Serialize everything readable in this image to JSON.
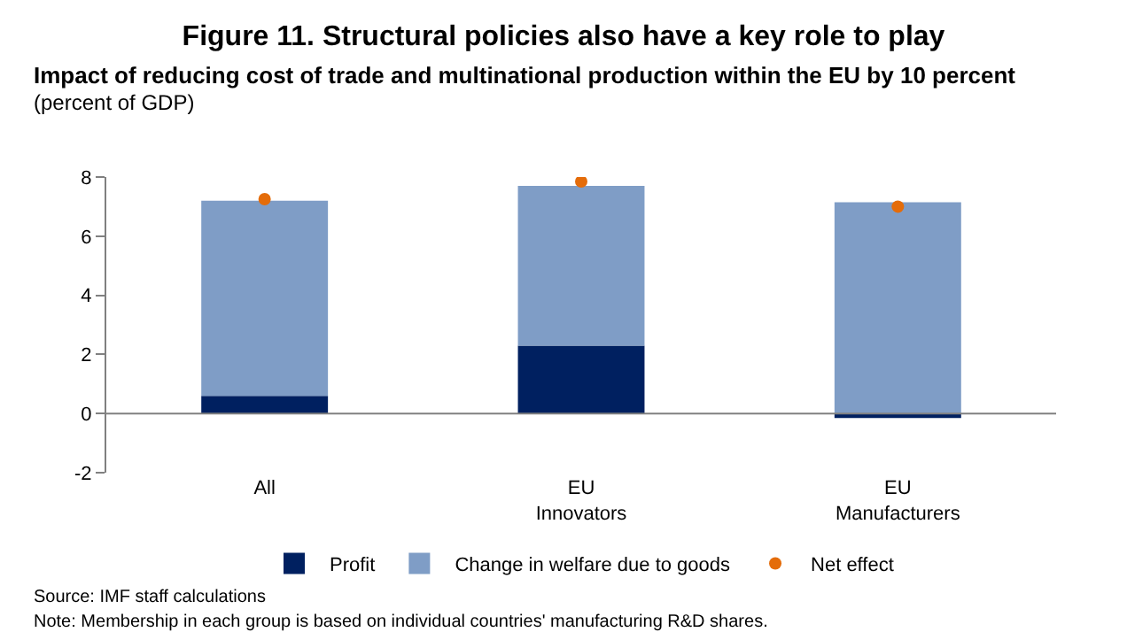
{
  "chart_data": {
    "type": "bar",
    "title": "Figure 11. Structural policies also have a key role to play",
    "subtitle": "Impact of reducing cost of trade and multinational production within the EU by 10 percent",
    "ylabel": "(percent of GDP)",
    "categories": [
      "All",
      "EU Innovators",
      "EU Manufacturers"
    ],
    "stacked": true,
    "series": [
      {
        "name": "Profit",
        "color": "#002060",
        "values": [
          0.6,
          2.3,
          -0.15
        ]
      },
      {
        "name": "Change in welfare due to goods",
        "color": "#7f9dc6",
        "values": [
          6.6,
          5.4,
          7.15
        ]
      },
      {
        "name": "Net effect",
        "color": "#e46c0a",
        "type": "scatter",
        "marker": "circle",
        "values": [
          7.25,
          7.85,
          7.0
        ]
      }
    ],
    "ylim": [
      -2,
      8
    ],
    "yticks": [
      -2,
      0,
      2,
      4,
      6,
      8
    ],
    "ref_lines": [
      {
        "axis": "y",
        "value": 0,
        "color": "#808080"
      }
    ],
    "legend": "bottom",
    "annotations": [
      "Source: IMF staff calculations",
      "Note: Membership in each group is based on individual countries' manufacturing R&D shares."
    ]
  }
}
